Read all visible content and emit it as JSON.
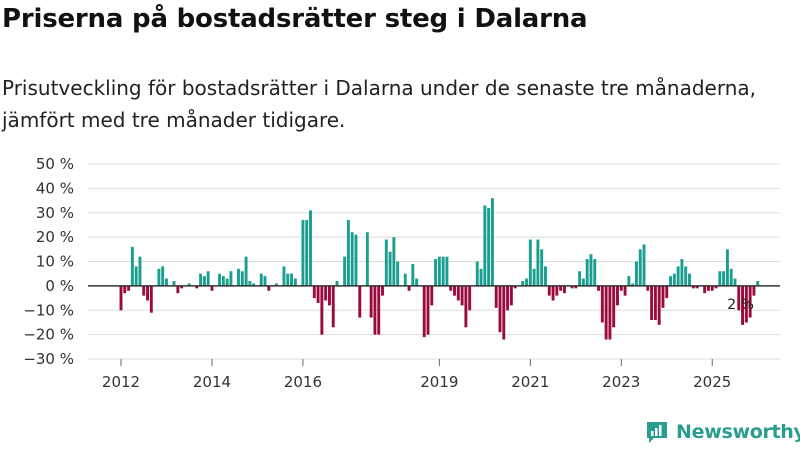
{
  "title": "Priserna på bostadsrätter steg i Dalarna",
  "subtitle": "Prisutveckling för bostadsrätter i Dalarna under de senaste tre månaderna, jämfört med tre månader tidigare.",
  "brand": {
    "name": "Newsworthy",
    "color": "#2a9d8f"
  },
  "colors": {
    "positive": "#1a9e8f",
    "negative": "#9b0a3e",
    "grid": "#dddddd",
    "zero": "#333333"
  },
  "chart_data": {
    "type": "bar",
    "title": "Priserna på bostadsrätter steg i Dalarna",
    "xlabel": "",
    "ylabel": "",
    "ylim": [
      -30,
      50
    ],
    "y_ticks": [
      50,
      40,
      30,
      20,
      10,
      0,
      -10,
      -20,
      -30
    ],
    "y_tick_labels": [
      "50 %",
      "40 %",
      "30 %",
      "20 %",
      "10 %",
      "0 %",
      "−10 %",
      "−20 %",
      "−30 %"
    ],
    "x_tick_labels": [
      {
        "label": "2012",
        "index": 0
      },
      {
        "label": "2014",
        "index": 24
      },
      {
        "label": "2016",
        "index": 48
      },
      {
        "label": "2019",
        "index": 84
      },
      {
        "label": "2021",
        "index": 108
      },
      {
        "label": "2023",
        "index": 132
      },
      {
        "label": "2025",
        "index": 156
      }
    ],
    "start": "2012-01",
    "frequency": "monthly",
    "annotation": {
      "text": "2 %",
      "index": 164
    },
    "values": [
      -10,
      -3,
      -2,
      16,
      8,
      12,
      -4,
      -6,
      -11,
      0,
      7,
      8,
      3,
      0,
      2,
      -3,
      -1,
      0,
      1,
      0,
      -1,
      5,
      4,
      6,
      -2,
      0,
      5,
      4,
      3,
      6,
      0,
      7,
      6,
      12,
      2,
      1,
      0,
      5,
      4,
      -2,
      0,
      1,
      0,
      8,
      5,
      5,
      3,
      0,
      27,
      27,
      31,
      -5,
      -7,
      -20,
      -6,
      -8,
      -17,
      2,
      0,
      12,
      27,
      22,
      21,
      -13,
      0,
      22,
      -13,
      -20,
      -20,
      -4,
      19,
      14,
      20,
      10,
      0,
      5,
      -2,
      9,
      3,
      0,
      -21,
      -20,
      -8,
      11,
      12,
      12,
      12,
      -2,
      -4,
      -6,
      -8,
      -17,
      -10,
      0,
      10,
      7,
      33,
      32,
      36,
      -9,
      -19,
      -22,
      -10,
      -8,
      -1,
      0,
      2,
      3,
      19,
      7,
      19,
      15,
      8,
      -4,
      -6,
      -4,
      -2,
      -3,
      0,
      -1,
      -1,
      6,
      3,
      11,
      13,
      11,
      -2,
      -15,
      -22,
      -22,
      -17,
      -8,
      -2,
      -4,
      4,
      1,
      10,
      15,
      17,
      -2,
      -14,
      -14,
      -16,
      -9,
      -5,
      4,
      5,
      8,
      11,
      8,
      5,
      -1,
      -1,
      0,
      -3,
      -2,
      -2,
      -1,
      6,
      6,
      15,
      7,
      3,
      -10,
      -16,
      -15,
      -13,
      -4,
      2
    ]
  }
}
